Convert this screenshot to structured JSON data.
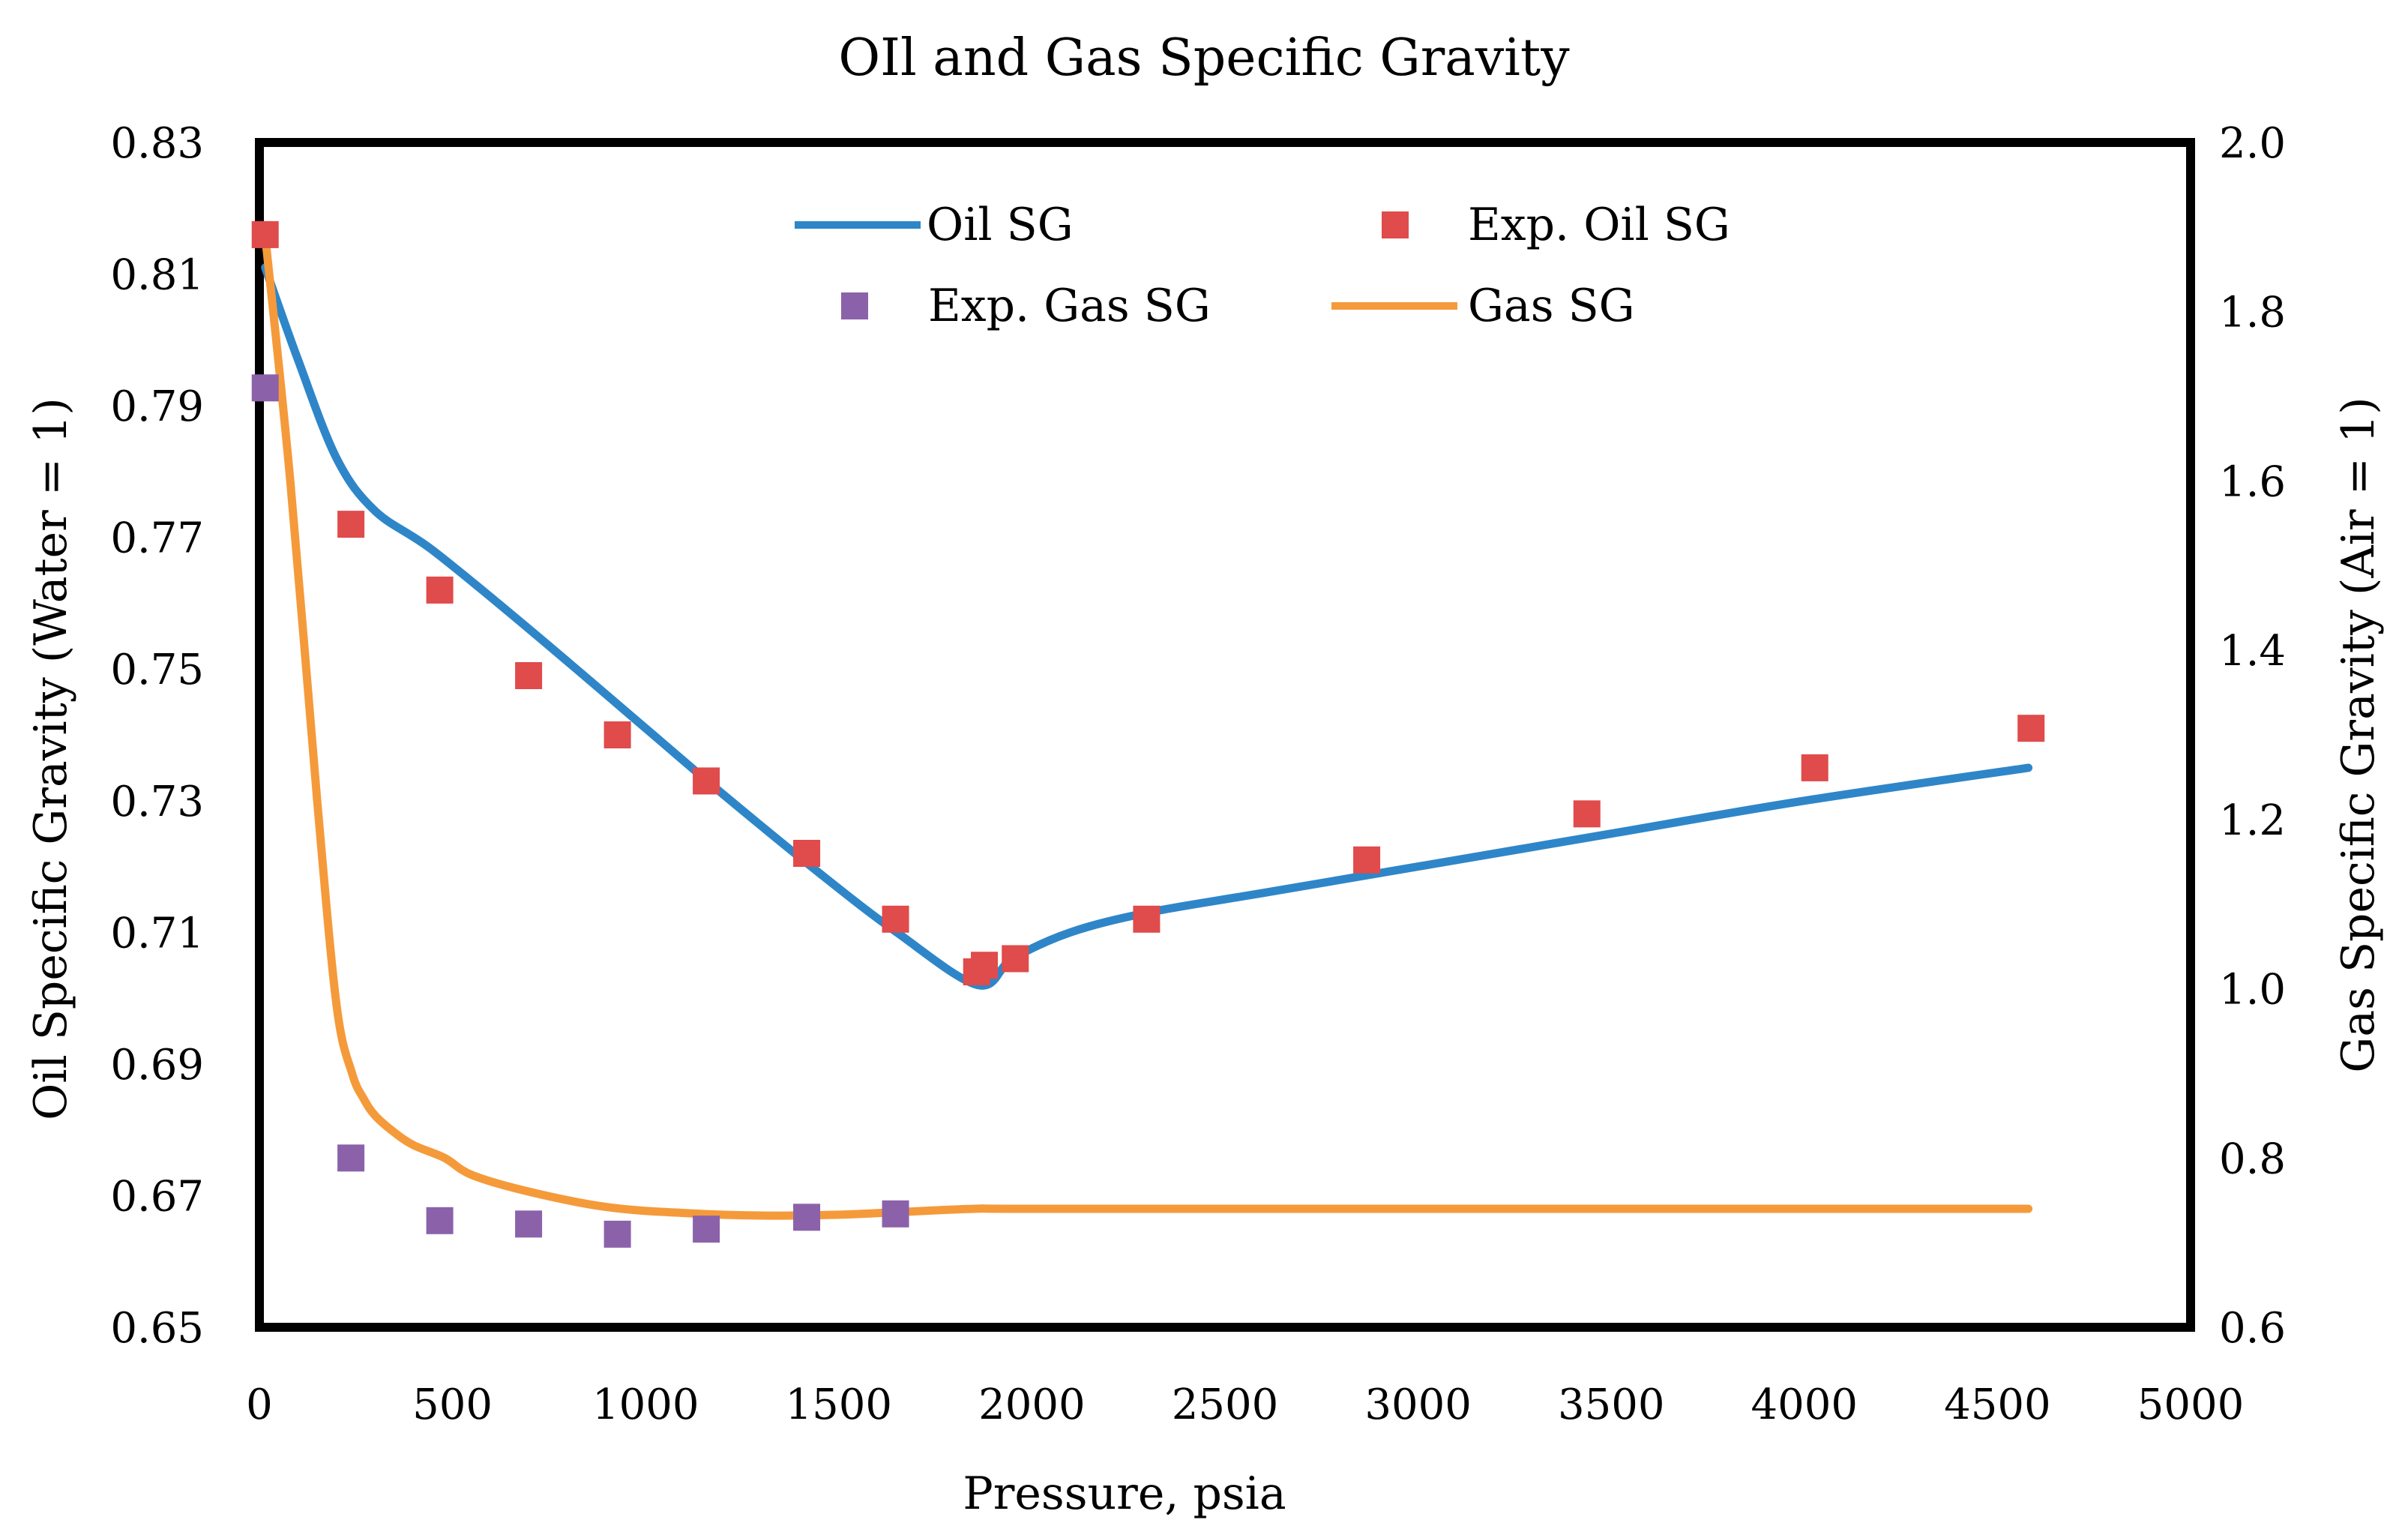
{
  "chart_data": {
    "type": "line+scatter (dual y-axis)",
    "title": "OIl and Gas Specific Gravity",
    "xlabel": "Pressure, psia",
    "ylabel_left": "Oil Specific Gravity (Water = 1)",
    "ylabel_right": "Gas Specific Gravity (Air = 1)",
    "xlim": [
      0,
      5000
    ],
    "ylim_left": [
      0.65,
      0.83
    ],
    "ylim_right": [
      0.6,
      2.0
    ],
    "x_ticks": [
      0,
      500,
      1000,
      1500,
      2000,
      2500,
      3000,
      3500,
      4000,
      4500,
      5000
    ],
    "x_tick_labels": [
      "0",
      "500",
      "1000",
      "1500",
      "2000",
      "2500",
      "3000",
      "3500",
      "4000",
      "4500",
      "5000"
    ],
    "y_left_ticks": [
      0.65,
      0.67,
      0.69,
      0.71,
      0.73,
      0.75,
      0.77,
      0.79,
      0.81,
      0.83
    ],
    "y_left_tick_labels": [
      "0.65",
      "0.67",
      "0.69",
      "0.71",
      "0.73",
      "0.75",
      "0.77",
      "0.79",
      "0.81",
      "0.83"
    ],
    "y_right_ticks": [
      0.6,
      0.8,
      1.0,
      1.2,
      1.4,
      1.6,
      1.8,
      2.0
    ],
    "y_right_tick_labels": [
      "0.6",
      "0.8",
      "1.0",
      "1.2",
      "1.4",
      "1.6",
      "1.8",
      "2.0"
    ],
    "legend_position": "top-center inside plot",
    "series": [
      {
        "name": "Oil SG",
        "kind": "line",
        "axis": "left",
        "color": "#2E86C8",
        "x": [
          15,
          100,
          200,
          300,
          450,
          700,
          1000,
          1200,
          1450,
          1650,
          1860,
          1950,
          2100,
          2300,
          2600,
          3000,
          3500,
          4000,
          4580
        ],
        "y": [
          0.811,
          0.797,
          0.782,
          0.774,
          0.768,
          0.756,
          0.741,
          0.731,
          0.719,
          0.71,
          0.702,
          0.706,
          0.71,
          0.713,
          0.716,
          0.72,
          0.725,
          0.73,
          0.735
        ]
      },
      {
        "name": "Exp. Oil SG",
        "kind": "scatter",
        "axis": "left",
        "color": "#E04B4B",
        "x": [
          15,
          237,
          467,
          697,
          927,
          1157,
          1417,
          1647,
          1857,
          1877,
          1957,
          2297,
          2867,
          3437,
          4027,
          4587
        ],
        "y": [
          0.816,
          0.772,
          0.762,
          0.749,
          0.74,
          0.733,
          0.722,
          0.712,
          0.704,
          0.705,
          0.706,
          0.712,
          0.721,
          0.728,
          0.735,
          0.741
        ]
      },
      {
        "name": "Exp. Gas SG",
        "kind": "scatter",
        "axis": "right",
        "color": "#8B62AA",
        "x": [
          15,
          237,
          467,
          697,
          927,
          1157,
          1417,
          1647
        ],
        "y": [
          1.71,
          0.8,
          0.726,
          0.722,
          0.71,
          0.716,
          0.73,
          0.734
        ]
      },
      {
        "name": "Gas SG",
        "kind": "line",
        "axis": "right",
        "color": "#F59A3A",
        "x": [
          15,
          80,
          150,
          200,
          240,
          270,
          300,
          350,
          400,
          480,
          550,
          700,
          900,
          1100,
          1300,
          1500,
          1650,
          1850,
          2000,
          3000,
          4000,
          4580
        ],
        "y": [
          1.89,
          1.6,
          1.22,
          0.98,
          0.9,
          0.87,
          0.85,
          0.83,
          0.815,
          0.8,
          0.78,
          0.76,
          0.742,
          0.735,
          0.732,
          0.733,
          0.736,
          0.74,
          0.74,
          0.74,
          0.74,
          0.74
        ]
      }
    ]
  }
}
